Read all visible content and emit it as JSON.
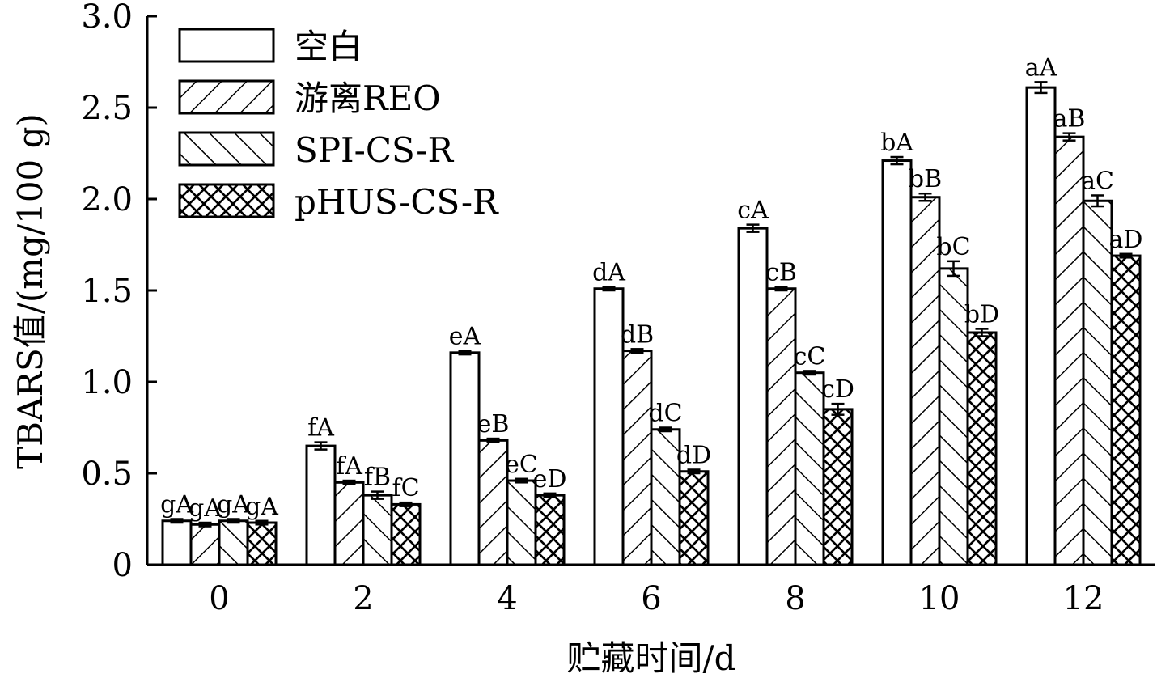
{
  "chart_data": {
    "type": "bar",
    "title": "",
    "xlabel": "贮藏时间/d",
    "ylabel": "TBARS值/(mg/100 g)",
    "categories": [
      "0",
      "2",
      "4",
      "6",
      "8",
      "10",
      "12"
    ],
    "ylim": [
      0,
      3.0
    ],
    "yticks": [
      "0",
      "0.5",
      "1.0",
      "1.5",
      "2.0",
      "2.5",
      "3.0"
    ],
    "grid": false,
    "legend_position": "top-left",
    "series": [
      {
        "name": "空白",
        "pattern": "none",
        "values": [
          0.24,
          0.65,
          1.16,
          1.51,
          1.84,
          2.21,
          2.61
        ],
        "errors": [
          0.01,
          0.02,
          0.01,
          0.01,
          0.02,
          0.02,
          0.03
        ],
        "labels": [
          "gA",
          "fA",
          "eA",
          "dA",
          "cA",
          "bA",
          "aA"
        ]
      },
      {
        "name": "游离REO",
        "pattern": "forward-diagonal",
        "values": [
          0.22,
          0.45,
          0.68,
          1.17,
          1.51,
          2.01,
          2.34
        ],
        "errors": [
          0.01,
          0.01,
          0.01,
          0.01,
          0.01,
          0.02,
          0.02
        ],
        "labels": [
          "gA",
          "fA",
          "eB",
          "dB",
          "cB",
          "bB",
          "aB"
        ]
      },
      {
        "name": "SPI-CS-R",
        "pattern": "backward-diagonal",
        "values": [
          0.24,
          0.38,
          0.46,
          0.74,
          1.05,
          1.62,
          1.99
        ],
        "errors": [
          0.01,
          0.02,
          0.01,
          0.01,
          0.01,
          0.04,
          0.03
        ],
        "labels": [
          "gA",
          "fB",
          "eC",
          "dC",
          "cC",
          "bC",
          "aC"
        ]
      },
      {
        "name": "pHUS-CS-R",
        "pattern": "crosshatch",
        "values": [
          0.23,
          0.33,
          0.38,
          0.51,
          0.85,
          1.27,
          1.69
        ],
        "errors": [
          0.01,
          0.01,
          0.01,
          0.01,
          0.03,
          0.02,
          0.01
        ],
        "labels": [
          "gA",
          "fC",
          "eD",
          "dD",
          "cD",
          "bD",
          "aD"
        ]
      }
    ]
  }
}
